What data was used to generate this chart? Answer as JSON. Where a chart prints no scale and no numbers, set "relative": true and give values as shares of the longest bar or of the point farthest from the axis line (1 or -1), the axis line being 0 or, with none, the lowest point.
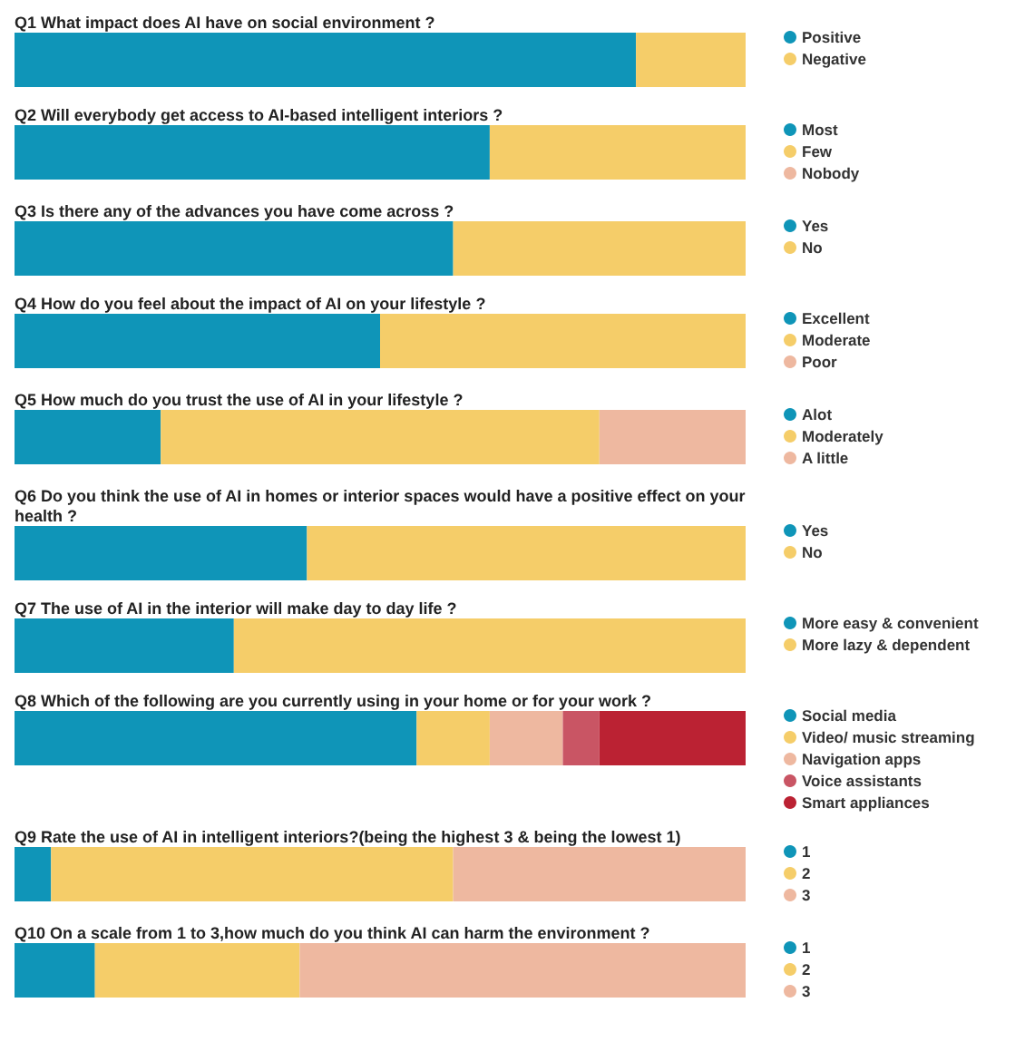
{
  "chart_data": [
    {
      "type": "bar",
      "title": "Q1 What impact does AI have on social environment ?",
      "categories": [
        null
      ],
      "orientation": "horizontal",
      "stacked": true,
      "relative": true,
      "legend": "right",
      "series": [
        {
          "name": "Positive",
          "color": "#0f95b8",
          "values": [
            0.85
          ]
        },
        {
          "name": "Negative",
          "color": "#f5cd69",
          "values": [
            0.15
          ]
        }
      ]
    },
    {
      "type": "bar",
      "title": "Q2 Will everybody get access to AI-based intelligent interiors ?",
      "categories": [
        null
      ],
      "orientation": "horizontal",
      "stacked": true,
      "relative": true,
      "legend": "right",
      "series": [
        {
          "name": "Most",
          "color": "#0f95b8",
          "values": [
            0.65
          ]
        },
        {
          "name": "Few",
          "color": "#f5cd69",
          "values": [
            0.35
          ]
        },
        {
          "name": "Nobody",
          "color": "#eeb8a0",
          "values": [
            0
          ]
        }
      ]
    },
    {
      "type": "bar",
      "title": "Q3 Is there any of the advances you have come across ?",
      "categories": [
        null
      ],
      "orientation": "horizontal",
      "stacked": true,
      "relative": true,
      "legend": "right",
      "series": [
        {
          "name": "Yes",
          "color": "#0f95b8",
          "values": [
            0.6
          ]
        },
        {
          "name": "No",
          "color": "#f5cd69",
          "values": [
            0.4
          ]
        }
      ]
    },
    {
      "type": "bar",
      "title": "Q4 How do you feel about the impact of AI on your lifestyle ?",
      "categories": [
        null
      ],
      "orientation": "horizontal",
      "stacked": true,
      "relative": true,
      "legend": "right",
      "series": [
        {
          "name": "Excellent",
          "color": "#0f95b8",
          "values": [
            0.5
          ]
        },
        {
          "name": "Moderate",
          "color": "#f5cd69",
          "values": [
            0.5
          ]
        },
        {
          "name": "Poor",
          "color": "#eeb8a0",
          "values": [
            0
          ]
        }
      ]
    },
    {
      "type": "bar",
      "title": "Q5 How much do you trust the use of AI in your lifestyle ?",
      "categories": [
        null
      ],
      "orientation": "horizontal",
      "stacked": true,
      "relative": true,
      "legend": "right",
      "series": [
        {
          "name": "Alot",
          "color": "#0f95b8",
          "values": [
            0.2
          ]
        },
        {
          "name": "Moderately",
          "color": "#f5cd69",
          "values": [
            0.6
          ]
        },
        {
          "name": "A little",
          "color": "#eeb8a0",
          "values": [
            0.2
          ]
        }
      ]
    },
    {
      "type": "bar",
      "title": "Q6 Do you think the use of AI in homes or interior spaces would have a positive effect on your health ?",
      "categories": [
        null
      ],
      "orientation": "horizontal",
      "stacked": true,
      "relative": true,
      "legend": "right",
      "series": [
        {
          "name": "Yes",
          "color": "#0f95b8",
          "values": [
            0.4
          ]
        },
        {
          "name": "No",
          "color": "#f5cd69",
          "values": [
            0.6
          ]
        }
      ]
    },
    {
      "type": "bar",
      "title": "Q7 The use of AI in the interior will make day to day life ?",
      "categories": [
        null
      ],
      "orientation": "horizontal",
      "stacked": true,
      "relative": true,
      "legend": "right",
      "series": [
        {
          "name": "More easy & convenient",
          "color": "#0f95b8",
          "values": [
            0.3
          ]
        },
        {
          "name": "More lazy & dependent",
          "color": "#f5cd69",
          "values": [
            0.7
          ]
        }
      ]
    },
    {
      "type": "bar",
      "title": "Q8 Which of the following are you currently using in your home or for your work ?",
      "categories": [
        null
      ],
      "orientation": "horizontal",
      "stacked": true,
      "relative": true,
      "legend": "right",
      "series": [
        {
          "name": "Social media",
          "color": "#0f95b8",
          "values": [
            0.55
          ]
        },
        {
          "name": "Video/ music streaming",
          "color": "#f5cd69",
          "values": [
            0.1
          ]
        },
        {
          "name": "Navigation apps",
          "color": "#eeb8a0",
          "values": [
            0.1
          ]
        },
        {
          "name": "Voice assistants",
          "color": "#c95564",
          "values": [
            0.05
          ]
        },
        {
          "name": "Smart appliances",
          "color": "#bb2233",
          "values": [
            0.2
          ]
        }
      ]
    },
    {
      "type": "bar",
      "title": "Q9 Rate the use of AI in intelligent interiors?(being the highest 3 & being the lowest 1)",
      "categories": [
        null
      ],
      "orientation": "horizontal",
      "stacked": true,
      "relative": true,
      "legend": "right",
      "series": [
        {
          "name": "1",
          "color": "#0f95b8",
          "values": [
            0.05
          ]
        },
        {
          "name": "2",
          "color": "#f5cd69",
          "values": [
            0.55
          ]
        },
        {
          "name": "3",
          "color": "#eeb8a0",
          "values": [
            0.4
          ]
        }
      ]
    },
    {
      "type": "bar",
      "title": "Q10 On a scale from 1 to 3,how much do you think AI can harm the environment ?",
      "categories": [
        null
      ],
      "orientation": "horizontal",
      "stacked": true,
      "relative": true,
      "legend": "right",
      "series": [
        {
          "name": "1",
          "color": "#0f95b8",
          "values": [
            0.11
          ]
        },
        {
          "name": "2",
          "color": "#f5cd69",
          "values": [
            0.28
          ]
        },
        {
          "name": "3",
          "color": "#eeb8a0",
          "values": [
            0.61
          ]
        }
      ]
    }
  ]
}
